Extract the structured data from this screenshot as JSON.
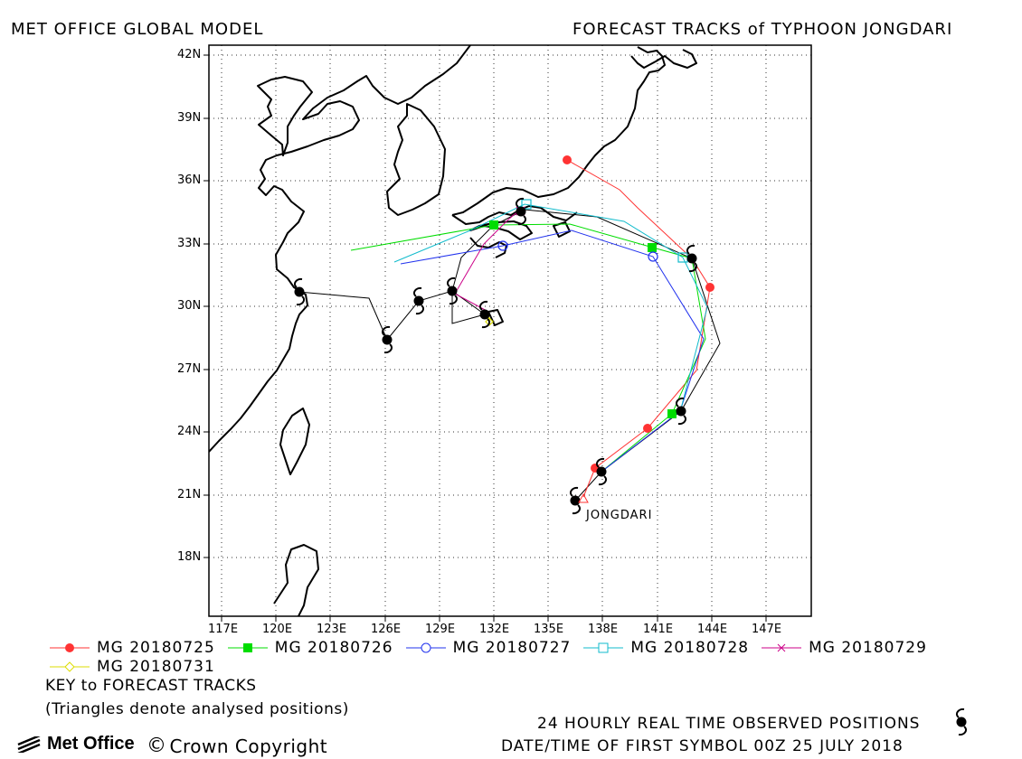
{
  "header": {
    "left": "MET OFFICE GLOBAL MODEL",
    "right": "FORECAST TRACKS of TYPHOON JONGDARI"
  },
  "map": {
    "lon_labels": [
      "117E",
      "120E",
      "123E",
      "126E",
      "129E",
      "132E",
      "135E",
      "138E",
      "141E",
      "144E",
      "147E"
    ],
    "lat_labels": [
      "42N",
      "39N",
      "36N",
      "33N",
      "30N",
      "27N",
      "24N",
      "21N",
      "18N"
    ],
    "storm_label": "JONGDARI"
  },
  "legend": [
    {
      "label": "MG 20180725",
      "color": "#ff3333",
      "marker": "filled-circle"
    },
    {
      "label": "MG 20180726",
      "color": "#00dd00",
      "marker": "filled-square"
    },
    {
      "label": "MG 20180727",
      "color": "#2233ee",
      "marker": "open-circle"
    },
    {
      "label": "MG 20180728",
      "color": "#11bbcc",
      "marker": "open-square"
    },
    {
      "label": "MG 20180729",
      "color": "#cc0088",
      "marker": "cross"
    },
    {
      "label": "MG 20180731",
      "color": "#dddd00",
      "marker": "open-diamond"
    }
  ],
  "notes": {
    "key": "KEY to FORECAST TRACKS",
    "triangles": "(Triangles denote analysed positions)",
    "observed": "24 HOURLY REAL TIME OBSERVED POSITIONS",
    "first_symbol": "DATE/TIME OF FIRST SYMBOL 00Z 25 JULY 2018"
  },
  "footer": {
    "brand": "Met Office",
    "copyright": "Crown Copyright"
  },
  "icons": [
    "typhoon-symbol-icon",
    "met-office-logo-icon",
    "copyright-icon"
  ]
}
